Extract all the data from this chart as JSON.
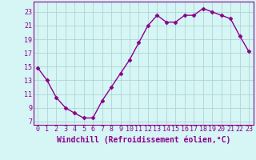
{
  "x": [
    0,
    1,
    2,
    3,
    4,
    5,
    6,
    7,
    8,
    9,
    10,
    11,
    12,
    13,
    14,
    15,
    16,
    17,
    18,
    19,
    20,
    21,
    22,
    23
  ],
  "y": [
    14.8,
    13.0,
    10.5,
    9.0,
    8.2,
    7.5,
    7.5,
    10.0,
    12.0,
    14.0,
    16.0,
    18.5,
    21.0,
    22.5,
    21.5,
    21.5,
    22.5,
    22.5,
    23.5,
    23.0,
    22.5,
    22.0,
    19.5,
    17.2
  ],
  "line_color": "#8b008b",
  "marker": "D",
  "markersize": 2.5,
  "linewidth": 1.0,
  "bg_color": "#d6f5f5",
  "grid_color": "#aacece",
  "xlabel": "Windchill (Refroidissement éolien,°C)",
  "xlabel_color": "#8b008b",
  "xlabel_fontsize": 7,
  "yticks": [
    7,
    9,
    11,
    13,
    15,
    17,
    19,
    21,
    23
  ],
  "xticks": [
    0,
    1,
    2,
    3,
    4,
    5,
    6,
    7,
    8,
    9,
    10,
    11,
    12,
    13,
    14,
    15,
    16,
    17,
    18,
    19,
    20,
    21,
    22,
    23
  ],
  "ylim": [
    6.5,
    24.5
  ],
  "xlim": [
    -0.5,
    23.5
  ],
  "tick_color": "#8b008b",
  "tick_fontsize": 6,
  "spine_color": "#8b008b"
}
